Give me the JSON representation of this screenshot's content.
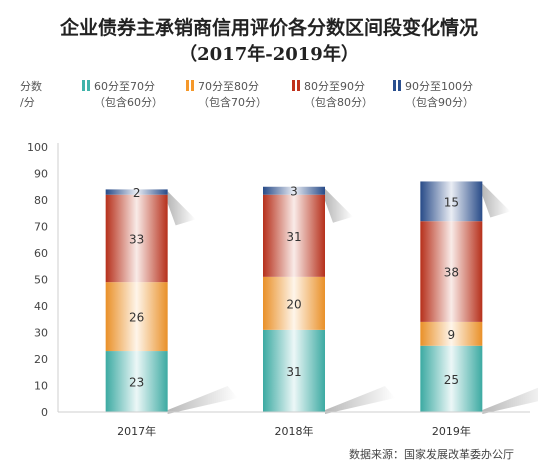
{
  "chart_data": {
    "type": "bar",
    "stacked": true,
    "title": "企业债券主承销商信用评价各分数区间段变化情况",
    "subtitle": "（2017年-2019年）",
    "ylabel": "分数/分",
    "ylabel_lines": [
      "分数",
      "/分"
    ],
    "ylim": [
      0,
      100
    ],
    "yticks": [
      0,
      10,
      20,
      30,
      40,
      50,
      60,
      70,
      80,
      90,
      100
    ],
    "categories": [
      "2017年",
      "2018年",
      "2019年"
    ],
    "series": [
      {
        "name": "60分至70分",
        "name_note": "（包含60分）",
        "color": "#3fb3aa",
        "values": [
          23,
          31,
          25
        ]
      },
      {
        "name": "70分至80分",
        "name_note": "（包含70分）",
        "color": "#f5982a",
        "values": [
          26,
          20,
          9
        ]
      },
      {
        "name": "80分至90分",
        "name_note": "（包含80分）",
        "color": "#c0321c",
        "values": [
          33,
          31,
          38
        ]
      },
      {
        "name": "90分至100分",
        "name_note": "（包含90分）",
        "color": "#2a4f8f",
        "values": [
          2,
          3,
          15
        ]
      }
    ],
    "legend_position": "top",
    "grid": false,
    "source": "数据来源：国家发展改革委办公厅"
  }
}
